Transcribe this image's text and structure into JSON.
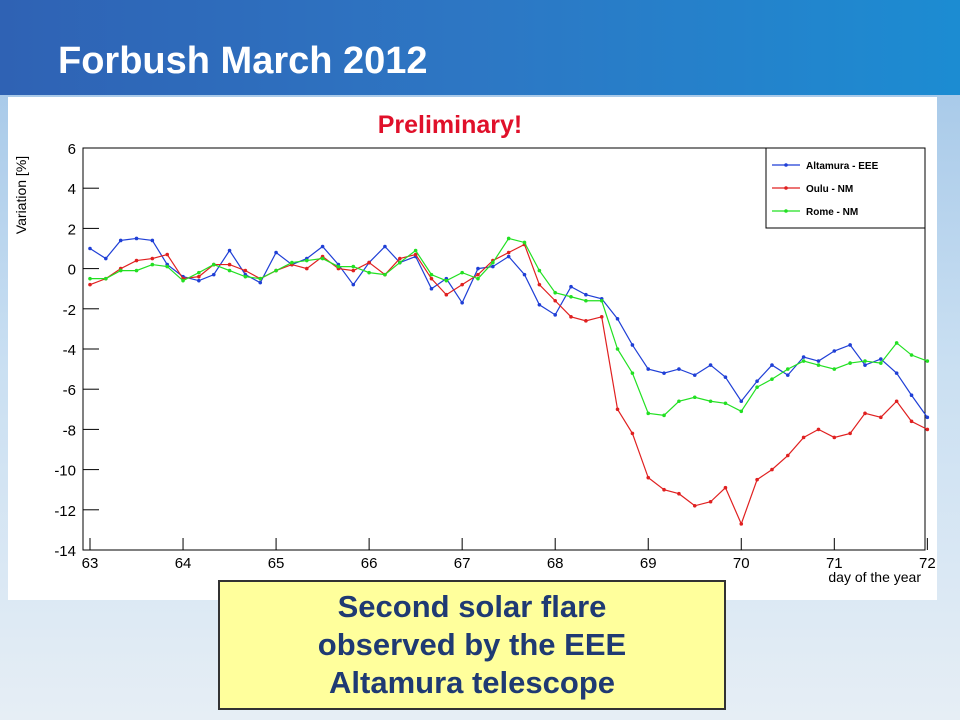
{
  "slide_title": "Forbush March 2012",
  "callout": [
    "Second solar flare",
    "observed by the EEE",
    "Altamura telescope"
  ],
  "chart_data": {
    "type": "line",
    "annotation": "Preliminary!",
    "x_label": "day of the year",
    "y_label": "Variation [%]",
    "xlim": [
      63,
      72.05
    ],
    "ylim": [
      -14,
      6
    ],
    "xticks": [
      63,
      64,
      65,
      66,
      67,
      68,
      69,
      70,
      71,
      72
    ],
    "yticks": [
      6,
      4,
      2,
      0,
      -2,
      -4,
      -6,
      -8,
      -10,
      -12,
      -14
    ],
    "grid": false,
    "legend": "upper right",
    "x": [
      63,
      63.17,
      63.33,
      63.5,
      63.67,
      63.83,
      64,
      64.17,
      64.33,
      64.5,
      64.67,
      64.83,
      65,
      65.17,
      65.33,
      65.5,
      65.67,
      65.83,
      66,
      66.17,
      66.33,
      66.5,
      66.67,
      66.83,
      67,
      67.17,
      67.33,
      67.5,
      67.67,
      67.83,
      68,
      68.17,
      68.33,
      68.5,
      68.67,
      68.83,
      69,
      69.17,
      69.33,
      69.5,
      69.67,
      69.83,
      70,
      70.17,
      70.33,
      70.5,
      70.67,
      70.83,
      71,
      71.17,
      71.33,
      71.5,
      71.67,
      71.83,
      72
    ],
    "series": [
      {
        "name": "Altamura - EEE",
        "color": "#1f3fd6",
        "values": [
          1.0,
          0.5,
          1.4,
          1.5,
          1.4,
          0.2,
          -0.4,
          -0.6,
          -0.3,
          0.9,
          -0.3,
          -0.7,
          0.8,
          0.2,
          0.5,
          1.1,
          0.2,
          -0.8,
          0.3,
          1.1,
          0.3,
          0.6,
          -1.0,
          -0.5,
          -1.7,
          0.0,
          0.1,
          0.6,
          -0.3,
          -1.8,
          -2.3,
          -0.9,
          -1.3,
          -1.5,
          -2.5,
          -3.8,
          -5.0,
          -5.2,
          -5.0,
          -5.3,
          -4.8,
          -5.4,
          -6.6,
          -5.6,
          -4.8,
          -5.3,
          -4.4,
          -4.6,
          -4.1,
          -3.8,
          -4.8,
          -4.5,
          -5.2,
          -6.3,
          -7.4
        ]
      },
      {
        "name": "Oulu - NM",
        "color": "#e02020",
        "values": [
          -0.8,
          -0.5,
          0.0,
          0.4,
          0.5,
          0.7,
          -0.5,
          -0.4,
          0.2,
          0.2,
          -0.1,
          -0.5,
          -0.1,
          0.2,
          0.0,
          0.6,
          0.0,
          -0.1,
          0.3,
          -0.3,
          0.5,
          0.7,
          -0.5,
          -1.3,
          -0.8,
          -0.3,
          0.4,
          0.8,
          1.2,
          -0.8,
          -1.6,
          -2.4,
          -2.6,
          -2.4,
          -7.0,
          -8.2,
          -10.4,
          -11.0,
          -11.2,
          -11.8,
          -11.6,
          -10.9,
          -12.7,
          -10.5,
          -10.0,
          -9.3,
          -8.4,
          -8.0,
          -8.4,
          -8.2,
          -7.2,
          -7.4,
          -6.6,
          -7.6,
          -8.0
        ]
      },
      {
        "name": "Rome - NM",
        "color": "#22e022",
        "values": [
          -0.5,
          -0.5,
          -0.1,
          -0.1,
          0.2,
          0.1,
          -0.6,
          -0.2,
          0.2,
          -0.1,
          -0.4,
          -0.5,
          -0.1,
          0.3,
          0.4,
          0.5,
          0.1,
          0.1,
          -0.2,
          -0.3,
          0.3,
          0.9,
          -0.3,
          -0.6,
          -0.2,
          -0.5,
          0.3,
          1.5,
          1.3,
          -0.1,
          -1.2,
          -1.4,
          -1.6,
          -1.6,
          -4.0,
          -5.2,
          -7.2,
          -7.3,
          -6.6,
          -6.4,
          -6.6,
          -6.7,
          -7.1,
          -5.9,
          -5.5,
          -5.0,
          -4.6,
          -4.8,
          -5.0,
          -4.7,
          -4.6,
          -4.7,
          -3.7,
          -4.3,
          -4.6
        ]
      }
    ]
  }
}
